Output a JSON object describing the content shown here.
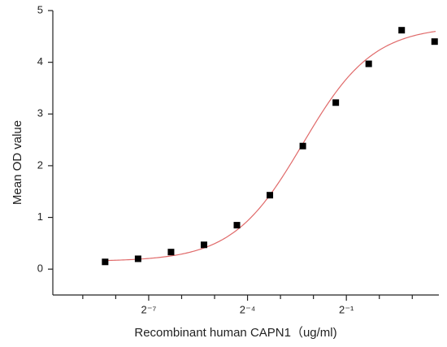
{
  "chart_data": {
    "type": "scatter",
    "x_axis_label": "Recombinant human  CAPN1（ug/ml)",
    "y_axis_label": "Mean OD value",
    "xscale": "log2",
    "xlim": [
      0.00104,
      3.5
    ],
    "ylim": [
      -0.5,
      5
    ],
    "xticks": [
      {
        "value": 0.0078125,
        "label": "2⁻⁷"
      },
      {
        "value": 0.0625,
        "label": "2⁻⁴"
      },
      {
        "value": 0.5,
        "label": "2⁻¹"
      }
    ],
    "xminorticks": [
      0.001953125,
      0.00390625,
      0.015625,
      0.03125,
      0.125,
      0.25,
      1,
      2
    ],
    "yticks": [
      0,
      1,
      2,
      3,
      4,
      5
    ],
    "series": [
      {
        "color": "#000000",
        "x": [
          0.003125,
          0.00625,
          0.0125,
          0.025,
          0.05,
          0.1,
          0.2,
          0.4,
          0.8,
          1.6,
          3.2
        ],
        "values": [
          0.14,
          0.2,
          0.33,
          0.47,
          0.85,
          1.43,
          2.38,
          3.22,
          3.97,
          4.62,
          4.4
        ]
      }
    ],
    "fit": {
      "model": "4PL",
      "color": "#e06a6a",
      "bottom": 0.15,
      "top": 4.7,
      "ec50": 0.2,
      "hill": 1.35
    }
  }
}
